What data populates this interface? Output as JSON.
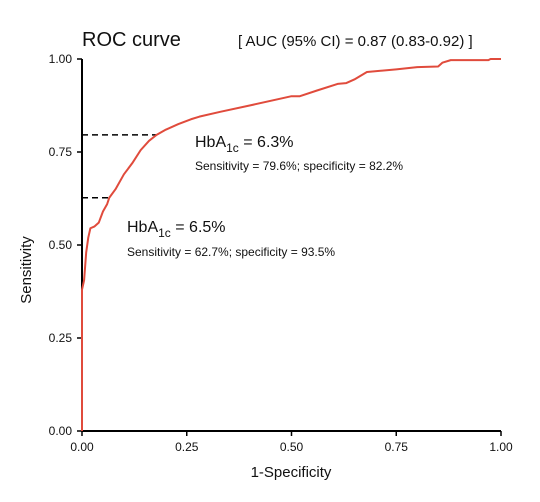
{
  "chart_data": {
    "type": "line",
    "title": "ROC curve",
    "auc_text": "[ AUC (95% CI) = 0.87 (0.83-0.92) ]",
    "xlabel": "1-Specificity",
    "ylabel": "Sensitivity",
    "xlim": [
      0,
      1
    ],
    "ylim": [
      0,
      1
    ],
    "xticks": [
      "0.00",
      "0.25",
      "0.50",
      "0.75",
      "1.00"
    ],
    "yticks": [
      "0.00",
      "0.25",
      "0.50",
      "0.75",
      "1.00"
    ],
    "grid": false,
    "series": [
      {
        "color": "#e04b3c",
        "points": [
          [
            0.0,
            0.0
          ],
          [
            0.0,
            0.38
          ],
          [
            0.005,
            0.405
          ],
          [
            0.01,
            0.48
          ],
          [
            0.015,
            0.52
          ],
          [
            0.02,
            0.545
          ],
          [
            0.03,
            0.55
          ],
          [
            0.04,
            0.56
          ],
          [
            0.05,
            0.59
          ],
          [
            0.06,
            0.61
          ],
          [
            0.065,
            0.627
          ],
          [
            0.08,
            0.65
          ],
          [
            0.1,
            0.69
          ],
          [
            0.12,
            0.72
          ],
          [
            0.14,
            0.755
          ],
          [
            0.16,
            0.78
          ],
          [
            0.178,
            0.796
          ],
          [
            0.2,
            0.81
          ],
          [
            0.23,
            0.825
          ],
          [
            0.26,
            0.838
          ],
          [
            0.28,
            0.845
          ],
          [
            0.33,
            0.858
          ],
          [
            0.4,
            0.875
          ],
          [
            0.48,
            0.895
          ],
          [
            0.5,
            0.9
          ],
          [
            0.52,
            0.9
          ],
          [
            0.56,
            0.915
          ],
          [
            0.61,
            0.933
          ],
          [
            0.63,
            0.935
          ],
          [
            0.65,
            0.945
          ],
          [
            0.68,
            0.965
          ],
          [
            0.75,
            0.972
          ],
          [
            0.8,
            0.978
          ],
          [
            0.85,
            0.98
          ],
          [
            0.86,
            0.99
          ],
          [
            0.88,
            0.997
          ],
          [
            0.95,
            0.997
          ],
          [
            0.97,
            0.997
          ],
          [
            0.975,
            1.0
          ],
          [
            1.0,
            1.0
          ]
        ]
      }
    ],
    "cutoffs": [
      {
        "x": 0.178,
        "y": 0.796,
        "label_main": "HbA",
        "label_sub": "1c",
        "label_value": " = 6.3%",
        "label_detail": "Sensitivity = 79.6%; specificity = 82.2%"
      },
      {
        "x": 0.065,
        "y": 0.627,
        "label_main": "HbA",
        "label_sub": "1c",
        "label_value": " = 6.5%",
        "label_detail": "Sensitivity = 62.7%; specificity = 93.5%"
      }
    ]
  }
}
